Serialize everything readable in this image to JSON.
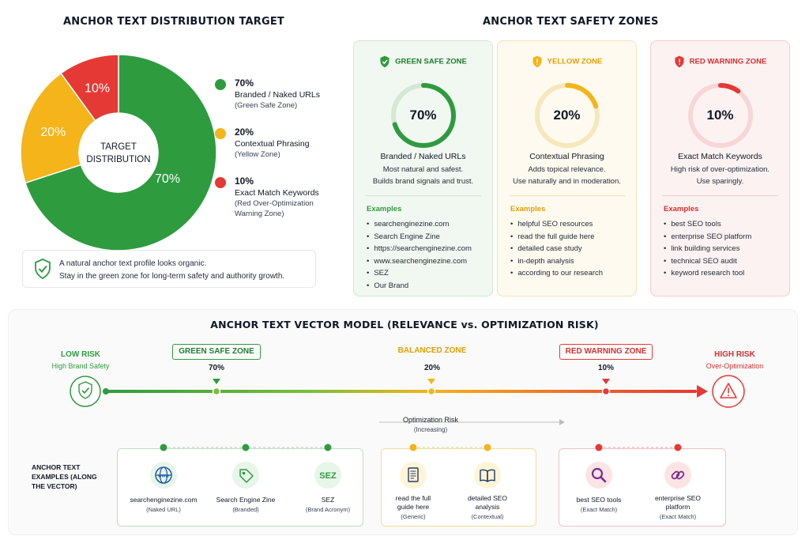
{
  "distribution": {
    "title": "ANCHOR TEXT DISTRIBUTION TARGET",
    "center_line1": "TARGET",
    "center_line2": "DISTRIBUTION",
    "colors": {
      "green": "#2e9b3f",
      "yellow": "#f4b41a",
      "red": "#e53935"
    },
    "chart_data": {
      "type": "pie",
      "categories": [
        "Branded / Naked URLs",
        "Contextual Phrasing",
        "Exact Match Keywords"
      ],
      "values": [
        70,
        20,
        10
      ],
      "slice_labels": [
        "70%",
        "20%",
        "10%"
      ]
    },
    "legend": [
      {
        "pct": "70%",
        "label": "Branded / Naked URLs",
        "sub1": "(Green Safe Zone)",
        "sub2": ""
      },
      {
        "pct": "20%",
        "label": "Contextual Phrasing",
        "sub1": "(Yellow Zone)",
        "sub2": ""
      },
      {
        "pct": "10%",
        "label": "Exact Match Keywords",
        "sub1": "(Red Over-Optimization",
        "sub2": "Warning Zone)"
      }
    ],
    "tip": {
      "line1": "A natural anchor text profile looks organic.",
      "line2": "Stay in the green zone for long-term safety and authority growth."
    }
  },
  "zones": {
    "title": "ANCHOR TEXT SAFETY ZONES",
    "cards": [
      {
        "header": "GREEN SAFE ZONE",
        "icon": "shield-check-icon",
        "pct": "70%",
        "value": 70,
        "name": "Branded / Naked URLs",
        "desc1": "Most natural and safest.",
        "desc2": "Builds brand signals and trust.",
        "examples_label": "Examples",
        "examples": [
          "searchenginezine.com",
          "Search Engine Zine",
          "https://searchenginezine.com",
          "www.searchenginezine.com",
          "SEZ",
          "Our Brand"
        ]
      },
      {
        "header": "YELLOW ZONE",
        "icon": "shield-warning-icon",
        "pct": "20%",
        "value": 20,
        "name": "Contextual Phrasing",
        "desc1": "Adds topical relevance.",
        "desc2": "Use naturally and in moderation.",
        "examples_label": "Examples",
        "examples": [
          "helpful SEO resources",
          "read the full guide here",
          "detailed case study",
          "in-depth analysis",
          "according to our research"
        ]
      },
      {
        "header": "RED WARNING ZONE",
        "icon": "shield-alert-icon",
        "pct": "10%",
        "value": 10,
        "name": "Exact Match Keywords",
        "desc1": "High risk of over-optimization.",
        "desc2": "Use sparingly.",
        "examples_label": "Examples",
        "examples": [
          "best SEO tools",
          "enterprise SEO platform",
          "link building services",
          "technical SEO audit",
          "keyword research tool"
        ]
      }
    ]
  },
  "vector": {
    "title": "ANCHOR TEXT VECTOR MODEL (RELEVANCE vs. OPTIMIZATION RISK)",
    "low_risk": "LOW RISK",
    "low_risk_sub": "High Brand Safety",
    "high_risk": "HIGH RISK",
    "high_risk_sub": "Over-Optimization",
    "markers": [
      {
        "tag": "GREEN SAFE ZONE",
        "pct": "70%"
      },
      {
        "tag": "BALANCED ZONE",
        "pct": "20%"
      },
      {
        "tag": "RED WARNING ZONE",
        "pct": "10%"
      }
    ],
    "risk_label": "Optimization Risk",
    "risk_sub": "(Increasing)",
    "examples_label": "ANCHOR TEXT EXAMPLES (ALONG THE VECTOR)",
    "examples": [
      {
        "icon": "globe-icon",
        "icon_text": "www",
        "name1": "searchenginezine.com",
        "name2": "",
        "type": "(Naked URL)"
      },
      {
        "icon": "tag-icon",
        "icon_text": "",
        "name1": "Search Engine Zine",
        "name2": "",
        "type": "(Branded)"
      },
      {
        "icon": "acronym-icon",
        "icon_text": "SEZ",
        "name1": "SEZ",
        "name2": "",
        "type": "(Brand Acronym)"
      },
      {
        "icon": "document-icon",
        "icon_text": "",
        "name1": "read the full",
        "name2": "guide here",
        "type": "(Generic)"
      },
      {
        "icon": "book-icon",
        "icon_text": "",
        "name1": "detailed SEO",
        "name2": "analysis",
        "type": "(Contextual)"
      },
      {
        "icon": "magnifier-icon",
        "icon_text": "",
        "name1": "best SEO tools",
        "name2": "",
        "type": "(Exact Match)"
      },
      {
        "icon": "link-icon",
        "icon_text": "",
        "name1": "enterprise SEO",
        "name2": "platform",
        "type": "(Exact Match)"
      }
    ]
  }
}
